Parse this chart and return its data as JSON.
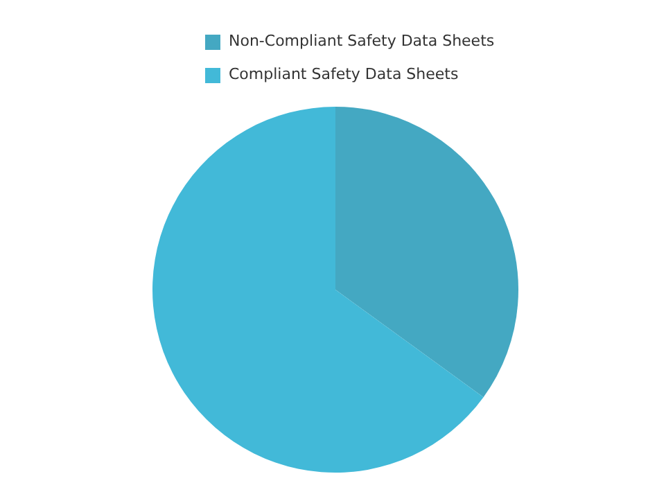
{
  "chart_data": {
    "type": "pie",
    "categories": [
      "Non-Compliant Safety Data Sheets",
      "Compliant Safety Data Sheets"
    ],
    "values": [
      35,
      65
    ],
    "colors": [
      "#44a8c2",
      "#42b9d8"
    ],
    "legend": "top"
  }
}
